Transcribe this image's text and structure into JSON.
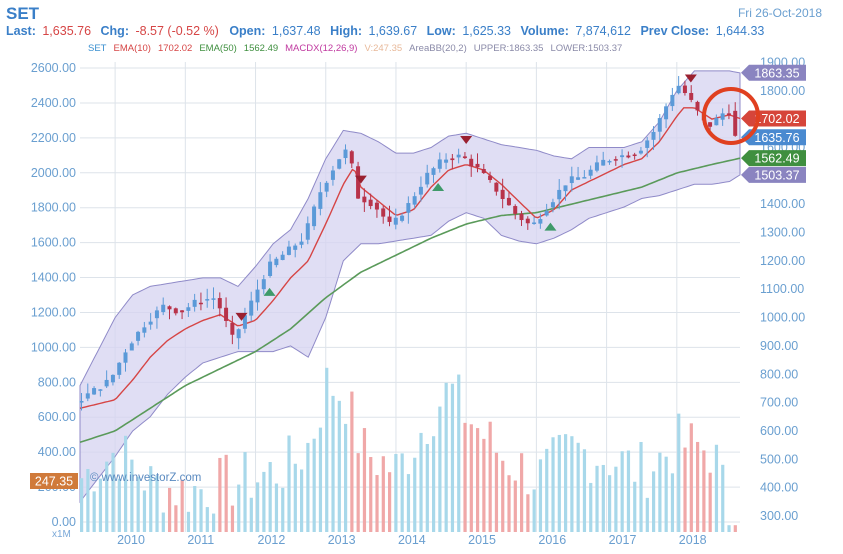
{
  "header": {
    "symbol": "SET",
    "date": "Fri 26-Oct-2018",
    "last_label": "Last:",
    "last_value": "1,635.76",
    "chg_label": "Chg:",
    "chg_value": "-8.57 (-0.52 %)",
    "open_label": "Open:",
    "open_value": "1,637.48",
    "high_label": "High:",
    "high_value": "1,639.67",
    "low_label": "Low:",
    "low_value": "1,625.33",
    "volume_label": "Volume:",
    "volume_value": "7,874,612",
    "prevclose_label": "Prev Close:",
    "prevclose_value": "1,644.33"
  },
  "legend": [
    {
      "text": "SET",
      "color": "#3a8fd0"
    },
    {
      "text": "EMA(10)",
      "color": "#d64545"
    },
    {
      "text": "1702.02",
      "color": "#d64545"
    },
    {
      "text": "EMA(50)",
      "color": "#3f8f3f"
    },
    {
      "text": "1562.49",
      "color": "#3f8f3f"
    },
    {
      "text": "MACDX(12,26,9)",
      "color": "#c03aa0"
    },
    {
      "text": "V:247.35",
      "color": "#e8b99a"
    },
    {
      "text": "AreaBB(20,2)",
      "color": "#8a8aa8"
    },
    {
      "text": "UPPER:1863.35",
      "color": "#8a8aa8"
    },
    {
      "text": "LOWER:1503.37",
      "color": "#8a8aa8"
    }
  ],
  "watermark": "© www.investorZ.com",
  "colors": {
    "up": "#5b9ad8",
    "down": "#b8334a",
    "ema10": "#d64545",
    "ema50": "#5a9a5a",
    "band_fill": "#d6d3f0",
    "band_line": "#8f8ac8",
    "vol_up": "#a8d8ea",
    "vol_down": "#f0a8a8",
    "axis_text": "#6a9fd0",
    "grid": "#dde3ea",
    "highlight": "#e04020"
  },
  "chart_data": {
    "type": "candlestick",
    "x_labels": [
      "2010",
      "2011",
      "2012",
      "2013",
      "2014",
      "2015",
      "2016",
      "2017",
      "2018"
    ],
    "left_axis_ticks": [
      "0.00",
      "200.00",
      "400.00",
      "600.00",
      "800.00",
      "1000.00",
      "1200.00",
      "1400.00",
      "1600.00",
      "1800.00",
      "2000.00",
      "2200.00",
      "2400.00",
      "2600.00"
    ],
    "right_axis_ticks": [
      "300.00",
      "400.00",
      "500.00",
      "600.00",
      "700.00",
      "800.00",
      "900.00",
      "1000.00",
      "1100.00",
      "1200.00",
      "1300.00",
      "1400.00",
      "1500.00",
      "1600.00",
      "1700.00",
      "1800.00",
      "1900.00"
    ],
    "price_ylim": [
      250,
      1900
    ],
    "vol_scale_label": "x1M",
    "price_tags": [
      {
        "value": "1863.35",
        "kind": "upper"
      },
      {
        "value": "1702.02",
        "kind": "ema10"
      },
      {
        "value": "1635.76",
        "kind": "last"
      },
      {
        "value": "1562.49",
        "kind": "ema50"
      },
      {
        "value": "1503.37",
        "kind": "lower"
      }
    ],
    "volume_tag": "247.35",
    "close_knots": [
      [
        2009.5,
        700
      ],
      [
        2010.0,
        780
      ],
      [
        2010.25,
        900
      ],
      [
        2010.5,
        980
      ],
      [
        2010.75,
        1040
      ],
      [
        2011.0,
        1020
      ],
      [
        2011.25,
        1060
      ],
      [
        2011.5,
        1070
      ],
      [
        2011.75,
        920
      ],
      [
        2012.0,
        1050
      ],
      [
        2012.25,
        1180
      ],
      [
        2012.5,
        1230
      ],
      [
        2012.75,
        1280
      ],
      [
        2013.0,
        1450
      ],
      [
        2013.25,
        1560
      ],
      [
        2013.4,
        1600
      ],
      [
        2013.5,
        1430
      ],
      [
        2013.75,
        1400
      ],
      [
        2014.0,
        1320
      ],
      [
        2014.25,
        1400
      ],
      [
        2014.5,
        1500
      ],
      [
        2014.75,
        1560
      ],
      [
        2015.0,
        1570
      ],
      [
        2015.25,
        1520
      ],
      [
        2015.5,
        1450
      ],
      [
        2015.75,
        1370
      ],
      [
        2016.0,
        1320
      ],
      [
        2016.25,
        1400
      ],
      [
        2016.5,
        1480
      ],
      [
        2016.75,
        1500
      ],
      [
        2017.0,
        1550
      ],
      [
        2017.25,
        1570
      ],
      [
        2017.5,
        1580
      ],
      [
        2017.75,
        1660
      ],
      [
        2018.0,
        1790
      ],
      [
        2018.1,
        1820
      ],
      [
        2018.25,
        1770
      ],
      [
        2018.5,
        1670
      ],
      [
        2018.6,
        1690
      ],
      [
        2018.8,
        1740
      ],
      [
        2018.9,
        1636
      ]
    ],
    "ema10_knots": [
      [
        2009.5,
        680
      ],
      [
        2010.0,
        710
      ],
      [
        2010.25,
        780
      ],
      [
        2010.5,
        860
      ],
      [
        2010.75,
        920
      ],
      [
        2011.0,
        960
      ],
      [
        2011.25,
        990
      ],
      [
        2011.5,
        1010
      ],
      [
        2011.75,
        970
      ],
      [
        2012.0,
        990
      ],
      [
        2012.25,
        1060
      ],
      [
        2012.5,
        1140
      ],
      [
        2012.75,
        1200
      ],
      [
        2013.0,
        1330
      ],
      [
        2013.25,
        1470
      ],
      [
        2013.4,
        1530
      ],
      [
        2013.5,
        1460
      ],
      [
        2013.75,
        1410
      ],
      [
        2014.0,
        1360
      ],
      [
        2014.25,
        1380
      ],
      [
        2014.5,
        1460
      ],
      [
        2014.75,
        1520
      ],
      [
        2015.0,
        1540
      ],
      [
        2015.25,
        1520
      ],
      [
        2015.5,
        1470
      ],
      [
        2015.75,
        1410
      ],
      [
        2016.0,
        1350
      ],
      [
        2016.25,
        1380
      ],
      [
        2016.5,
        1450
      ],
      [
        2016.75,
        1480
      ],
      [
        2017.0,
        1510
      ],
      [
        2017.25,
        1540
      ],
      [
        2017.5,
        1560
      ],
      [
        2017.75,
        1620
      ],
      [
        2018.0,
        1710
      ],
      [
        2018.1,
        1740
      ],
      [
        2018.25,
        1740
      ],
      [
        2018.5,
        1700
      ],
      [
        2018.75,
        1715
      ],
      [
        2018.9,
        1702
      ]
    ],
    "ema50_knots": [
      [
        2009.5,
        560
      ],
      [
        2010.0,
        600
      ],
      [
        2010.5,
        680
      ],
      [
        2011.0,
        760
      ],
      [
        2011.5,
        820
      ],
      [
        2012.0,
        880
      ],
      [
        2012.5,
        960
      ],
      [
        2013.0,
        1070
      ],
      [
        2013.5,
        1160
      ],
      [
        2014.0,
        1220
      ],
      [
        2014.5,
        1280
      ],
      [
        2015.0,
        1330
      ],
      [
        2015.5,
        1360
      ],
      [
        2016.0,
        1370
      ],
      [
        2016.5,
        1400
      ],
      [
        2017.0,
        1430
      ],
      [
        2017.5,
        1460
      ],
      [
        2018.0,
        1510
      ],
      [
        2018.5,
        1540
      ],
      [
        2018.9,
        1562
      ]
    ],
    "upper_knots": [
      [
        2009.5,
        760
      ],
      [
        2010.0,
        1000
      ],
      [
        2010.25,
        1080
      ],
      [
        2010.5,
        1110
      ],
      [
        2010.75,
        1120
      ],
      [
        2011.0,
        1130
      ],
      [
        2011.25,
        1140
      ],
      [
        2011.5,
        1140
      ],
      [
        2011.75,
        1110
      ],
      [
        2012.0,
        1180
      ],
      [
        2012.25,
        1260
      ],
      [
        2012.5,
        1310
      ],
      [
        2012.75,
        1420
      ],
      [
        2013.0,
        1560
      ],
      [
        2013.25,
        1660
      ],
      [
        2013.5,
        1650
      ],
      [
        2013.75,
        1620
      ],
      [
        2014.0,
        1580
      ],
      [
        2014.25,
        1580
      ],
      [
        2014.5,
        1600
      ],
      [
        2014.75,
        1640
      ],
      [
        2015.0,
        1650
      ],
      [
        2015.25,
        1630
      ],
      [
        2015.5,
        1610
      ],
      [
        2015.75,
        1600
      ],
      [
        2016.0,
        1590
      ],
      [
        2016.25,
        1570
      ],
      [
        2016.5,
        1560
      ],
      [
        2016.75,
        1600
      ],
      [
        2017.0,
        1600
      ],
      [
        2017.25,
        1600
      ],
      [
        2017.5,
        1620
      ],
      [
        2017.75,
        1690
      ],
      [
        2018.0,
        1800
      ],
      [
        2018.25,
        1870
      ],
      [
        2018.5,
        1870
      ],
      [
        2018.75,
        1870
      ],
      [
        2018.9,
        1863
      ]
    ],
    "lower_knots": [
      [
        2009.5,
        350
      ],
      [
        2010.0,
        510
      ],
      [
        2010.25,
        600
      ],
      [
        2010.5,
        650
      ],
      [
        2010.75,
        730
      ],
      [
        2011.0,
        790
      ],
      [
        2011.25,
        840
      ],
      [
        2011.5,
        860
      ],
      [
        2011.75,
        880
      ],
      [
        2012.0,
        880
      ],
      [
        2012.25,
        880
      ],
      [
        2012.5,
        900
      ],
      [
        2012.75,
        860
      ],
      [
        2013.0,
        1000
      ],
      [
        2013.25,
        1200
      ],
      [
        2013.5,
        1260
      ],
      [
        2013.75,
        1260
      ],
      [
        2014.0,
        1270
      ],
      [
        2014.25,
        1280
      ],
      [
        2014.5,
        1290
      ],
      [
        2014.75,
        1340
      ],
      [
        2015.0,
        1370
      ],
      [
        2015.25,
        1350
      ],
      [
        2015.5,
        1290
      ],
      [
        2015.75,
        1270
      ],
      [
        2016.0,
        1260
      ],
      [
        2016.25,
        1280
      ],
      [
        2016.5,
        1310
      ],
      [
        2016.75,
        1350
      ],
      [
        2017.0,
        1370
      ],
      [
        2017.25,
        1390
      ],
      [
        2017.5,
        1420
      ],
      [
        2017.75,
        1430
      ],
      [
        2018.0,
        1450
      ],
      [
        2018.25,
        1470
      ],
      [
        2018.5,
        1470
      ],
      [
        2018.75,
        1480
      ],
      [
        2018.9,
        1503
      ]
    ],
    "volume_knots": [
      [
        2009.5,
        380
      ],
      [
        2010.0,
        420
      ],
      [
        2010.5,
        370
      ],
      [
        2011.0,
        360
      ],
      [
        2011.5,
        370
      ],
      [
        2012.0,
        380
      ],
      [
        2012.5,
        400
      ],
      [
        2012.75,
        430
      ],
      [
        2013.0,
        520
      ],
      [
        2013.25,
        500
      ],
      [
        2013.5,
        420
      ],
      [
        2014.0,
        390
      ],
      [
        2014.5,
        480
      ],
      [
        2014.75,
        510
      ],
      [
        2015.0,
        470
      ],
      [
        2015.5,
        410
      ],
      [
        2016.0,
        380
      ],
      [
        2016.5,
        420
      ],
      [
        2017.0,
        410
      ],
      [
        2017.5,
        390
      ],
      [
        2018.0,
        430
      ],
      [
        2018.5,
        420
      ],
      [
        2018.9,
        247
      ]
    ],
    "signals": [
      {
        "x": 2011.8,
        "type": "sell"
      },
      {
        "x": 2012.2,
        "type": "buy"
      },
      {
        "x": 2013.5,
        "type": "sell"
      },
      {
        "x": 2014.6,
        "type": "buy"
      },
      {
        "x": 2015.0,
        "type": "sell"
      },
      {
        "x": 2016.2,
        "type": "buy"
      },
      {
        "x": 2018.2,
        "type": "sell"
      }
    ]
  }
}
